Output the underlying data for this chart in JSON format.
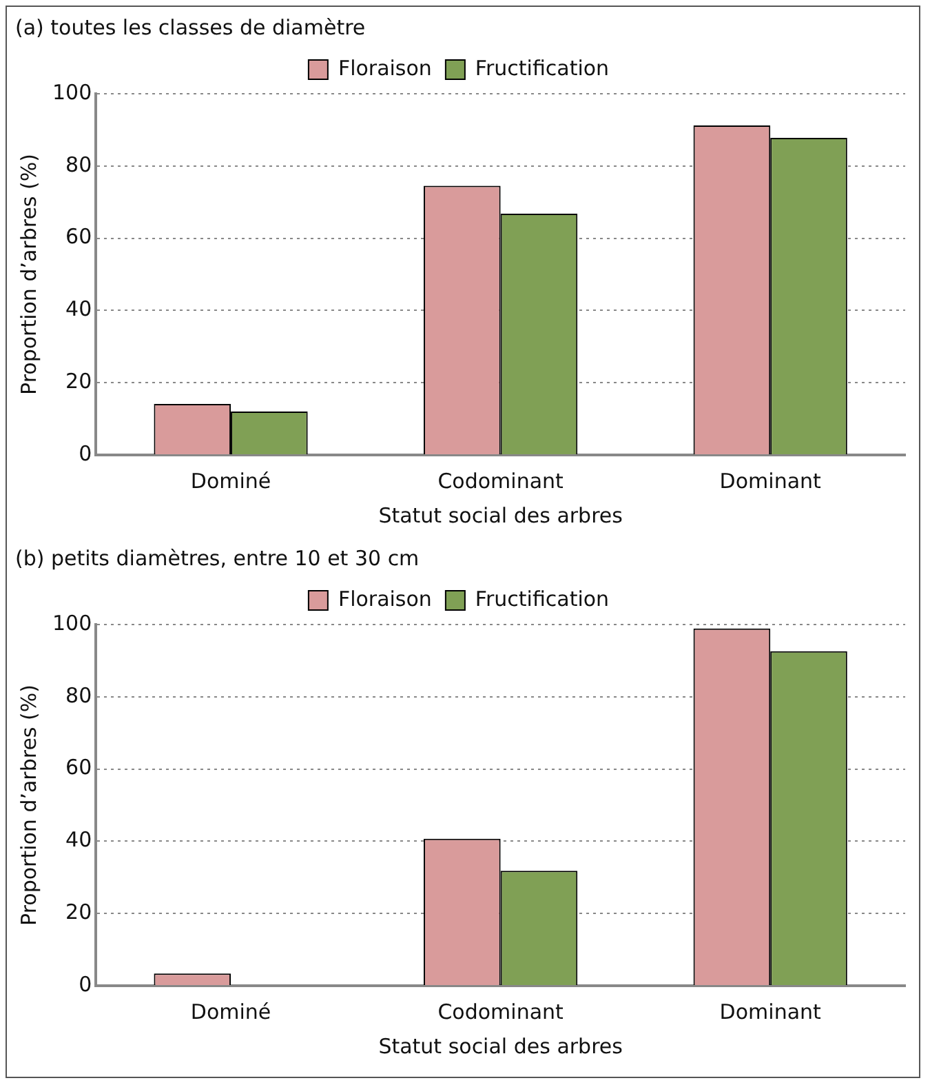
{
  "chart_data": [
    {
      "type": "bar",
      "title": "(a) toutes les classes de diamètre",
      "xlabel": "Statut social des arbres",
      "ylabel": "Proportion d’arbres (%)",
      "categories": [
        "Dominé",
        "Codominant",
        "Dominant"
      ],
      "series": [
        {
          "name": "Floraison",
          "color": "#d99b9b",
          "values": [
            14.1,
            74.5,
            91.2
          ]
        },
        {
          "name": "Fructification",
          "color": "#80a055",
          "values": [
            12.0,
            66.8,
            87.8
          ]
        }
      ],
      "ylim": [
        0,
        100
      ],
      "yticks": [
        0,
        20,
        40,
        60,
        80,
        100
      ],
      "grid": "y",
      "legend": "top"
    },
    {
      "type": "bar",
      "title": "(b) petits diamètres, entre 10 et 30 cm",
      "xlabel": "Statut social des arbres",
      "ylabel": "Proportion d’arbres (%)",
      "categories": [
        "Dominé",
        "Codominant",
        "Dominant"
      ],
      "series": [
        {
          "name": "Floraison",
          "color": "#d99b9b",
          "values": [
            3.4,
            40.7,
            98.9
          ]
        },
        {
          "name": "Fructification",
          "color": "#80a055",
          "values": [
            0,
            31.8,
            92.6
          ]
        }
      ],
      "ylim": [
        0,
        100
      ],
      "yticks": [
        0,
        20,
        40,
        60,
        80,
        100
      ],
      "grid": "y",
      "legend": "top"
    }
  ]
}
